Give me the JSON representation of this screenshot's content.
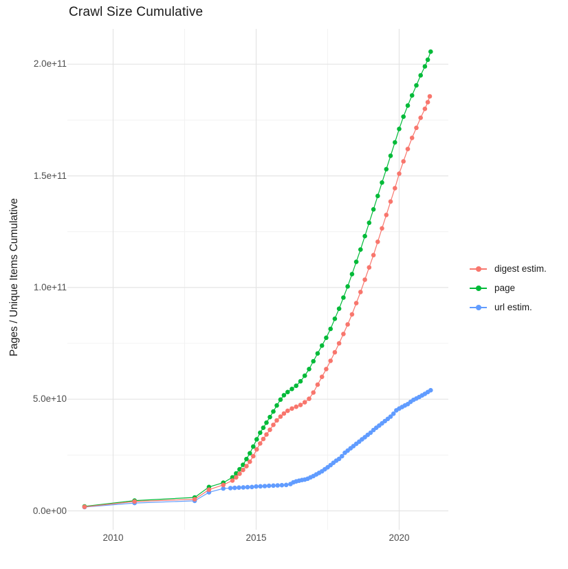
{
  "page": {
    "title": "Crawl Size Cumulative"
  },
  "chart_data": {
    "type": "scatter",
    "title": "Crawl Size Cumulative",
    "xlabel": "",
    "ylabel": "Pages / Unique Items Cumulative",
    "value_unit": "1e10",
    "grid": true,
    "legend_position": "right",
    "xlim": [
      2008.4,
      2021.7
    ],
    "ylim_e10": [
      -0.9,
      21.6
    ],
    "x_ticks": {
      "values": [
        2010,
        2015,
        2020
      ],
      "labels": [
        "2010",
        "2015",
        "2020"
      ],
      "minor": [
        2012.5,
        2017.5
      ]
    },
    "y_ticks": {
      "values_e10": [
        0,
        5,
        10,
        15,
        20
      ],
      "labels": [
        "0.0e+00",
        "5.0e+10",
        "1.0e+11",
        "1.5e+11",
        "2.0e+11"
      ],
      "minor_e10": [
        2.5,
        7.5,
        12.5,
        17.5
      ]
    },
    "series": [
      {
        "name": "digest estim.",
        "color": "#F8766D",
        "points": [
          [
            2009.0,
            0.18
          ],
          [
            2010.75,
            0.42
          ],
          [
            2012.85,
            0.52
          ],
          [
            2013.35,
            0.95
          ],
          [
            2013.85,
            1.16
          ],
          [
            2014.17,
            1.36
          ],
          [
            2014.3,
            1.5
          ],
          [
            2014.42,
            1.66
          ],
          [
            2014.54,
            1.83
          ],
          [
            2014.66,
            2.0
          ],
          [
            2014.78,
            2.2
          ],
          [
            2014.9,
            2.45
          ],
          [
            2015.02,
            2.75
          ],
          [
            2015.14,
            3.02
          ],
          [
            2015.25,
            3.22
          ],
          [
            2015.36,
            3.42
          ],
          [
            2015.48,
            3.63
          ],
          [
            2015.6,
            3.85
          ],
          [
            2015.72,
            4.05
          ],
          [
            2015.85,
            4.22
          ],
          [
            2015.97,
            4.36
          ],
          [
            2016.1,
            4.48
          ],
          [
            2016.25,
            4.58
          ],
          [
            2016.4,
            4.66
          ],
          [
            2016.55,
            4.74
          ],
          [
            2016.7,
            4.86
          ],
          [
            2016.85,
            5.02
          ],
          [
            2017.0,
            5.3
          ],
          [
            2017.15,
            5.65
          ],
          [
            2017.3,
            6.0
          ],
          [
            2017.45,
            6.35
          ],
          [
            2017.6,
            6.72
          ],
          [
            2017.75,
            7.1
          ],
          [
            2017.9,
            7.5
          ],
          [
            2018.05,
            7.92
          ],
          [
            2018.2,
            8.35
          ],
          [
            2018.35,
            8.8
          ],
          [
            2018.5,
            9.3
          ],
          [
            2018.65,
            9.8
          ],
          [
            2018.8,
            10.35
          ],
          [
            2018.95,
            10.9
          ],
          [
            2019.1,
            11.45
          ],
          [
            2019.25,
            12.05
          ],
          [
            2019.4,
            12.65
          ],
          [
            2019.55,
            13.25
          ],
          [
            2019.7,
            13.85
          ],
          [
            2019.85,
            14.45
          ],
          [
            2020.0,
            15.1
          ],
          [
            2020.15,
            15.65
          ],
          [
            2020.3,
            16.2
          ],
          [
            2020.45,
            16.7
          ],
          [
            2020.6,
            17.15
          ],
          [
            2020.75,
            17.6
          ],
          [
            2020.9,
            18.0
          ],
          [
            2021.0,
            18.3
          ],
          [
            2021.07,
            18.56
          ]
        ]
      },
      {
        "name": "page",
        "color": "#00BA38",
        "points": [
          [
            2009.0,
            0.2
          ],
          [
            2010.75,
            0.46
          ],
          [
            2012.85,
            0.6
          ],
          [
            2013.35,
            1.07
          ],
          [
            2013.85,
            1.26
          ],
          [
            2014.17,
            1.5
          ],
          [
            2014.3,
            1.68
          ],
          [
            2014.42,
            1.86
          ],
          [
            2014.54,
            2.06
          ],
          [
            2014.66,
            2.32
          ],
          [
            2014.78,
            2.58
          ],
          [
            2014.9,
            2.88
          ],
          [
            2015.02,
            3.2
          ],
          [
            2015.14,
            3.5
          ],
          [
            2015.25,
            3.72
          ],
          [
            2015.36,
            3.95
          ],
          [
            2015.48,
            4.2
          ],
          [
            2015.6,
            4.45
          ],
          [
            2015.72,
            4.72
          ],
          [
            2015.85,
            4.98
          ],
          [
            2015.97,
            5.18
          ],
          [
            2016.1,
            5.32
          ],
          [
            2016.25,
            5.46
          ],
          [
            2016.4,
            5.6
          ],
          [
            2016.55,
            5.8
          ],
          [
            2016.7,
            6.05
          ],
          [
            2016.85,
            6.35
          ],
          [
            2017.0,
            6.7
          ],
          [
            2017.15,
            7.05
          ],
          [
            2017.3,
            7.4
          ],
          [
            2017.45,
            7.75
          ],
          [
            2017.6,
            8.15
          ],
          [
            2017.75,
            8.6
          ],
          [
            2017.9,
            9.05
          ],
          [
            2018.05,
            9.55
          ],
          [
            2018.2,
            10.05
          ],
          [
            2018.35,
            10.6
          ],
          [
            2018.5,
            11.15
          ],
          [
            2018.65,
            11.7
          ],
          [
            2018.8,
            12.3
          ],
          [
            2018.95,
            12.9
          ],
          [
            2019.1,
            13.5
          ],
          [
            2019.25,
            14.1
          ],
          [
            2019.4,
            14.7
          ],
          [
            2019.55,
            15.3
          ],
          [
            2019.7,
            15.9
          ],
          [
            2019.85,
            16.5
          ],
          [
            2020.0,
            17.1
          ],
          [
            2020.15,
            17.65
          ],
          [
            2020.3,
            18.15
          ],
          [
            2020.45,
            18.6
          ],
          [
            2020.6,
            19.05
          ],
          [
            2020.75,
            19.5
          ],
          [
            2020.9,
            19.9
          ],
          [
            2021.0,
            20.2
          ],
          [
            2021.1,
            20.56
          ]
        ]
      },
      {
        "name": "url estim.",
        "color": "#619CFF",
        "points": [
          [
            2009.0,
            0.17
          ],
          [
            2010.75,
            0.35
          ],
          [
            2012.85,
            0.45
          ],
          [
            2013.35,
            0.83
          ],
          [
            2013.85,
            1.0
          ],
          [
            2014.1,
            1.02
          ],
          [
            2014.25,
            1.03
          ],
          [
            2014.4,
            1.04
          ],
          [
            2014.55,
            1.05
          ],
          [
            2014.7,
            1.06
          ],
          [
            2014.85,
            1.07
          ],
          [
            2015.0,
            1.09
          ],
          [
            2015.15,
            1.1
          ],
          [
            2015.3,
            1.11
          ],
          [
            2015.45,
            1.12
          ],
          [
            2015.6,
            1.13
          ],
          [
            2015.75,
            1.14
          ],
          [
            2015.9,
            1.15
          ],
          [
            2016.05,
            1.16
          ],
          [
            2016.2,
            1.2
          ],
          [
            2016.3,
            1.28
          ],
          [
            2016.4,
            1.32
          ],
          [
            2016.5,
            1.35
          ],
          [
            2016.6,
            1.38
          ],
          [
            2016.7,
            1.4
          ],
          [
            2016.8,
            1.44
          ],
          [
            2016.9,
            1.5
          ],
          [
            2017.0,
            1.56
          ],
          [
            2017.1,
            1.63
          ],
          [
            2017.2,
            1.7
          ],
          [
            2017.3,
            1.77
          ],
          [
            2017.4,
            1.86
          ],
          [
            2017.5,
            1.95
          ],
          [
            2017.6,
            2.05
          ],
          [
            2017.7,
            2.15
          ],
          [
            2017.8,
            2.25
          ],
          [
            2017.9,
            2.33
          ],
          [
            2018.0,
            2.45
          ],
          [
            2018.1,
            2.6
          ],
          [
            2018.2,
            2.7
          ],
          [
            2018.3,
            2.8
          ],
          [
            2018.4,
            2.9
          ],
          [
            2018.5,
            3.0
          ],
          [
            2018.6,
            3.1
          ],
          [
            2018.7,
            3.2
          ],
          [
            2018.8,
            3.3
          ],
          [
            2018.9,
            3.4
          ],
          [
            2019.0,
            3.5
          ],
          [
            2019.1,
            3.62
          ],
          [
            2019.2,
            3.72
          ],
          [
            2019.3,
            3.82
          ],
          [
            2019.4,
            3.92
          ],
          [
            2019.5,
            4.02
          ],
          [
            2019.6,
            4.12
          ],
          [
            2019.7,
            4.22
          ],
          [
            2019.8,
            4.35
          ],
          [
            2019.9,
            4.5
          ],
          [
            2020.0,
            4.58
          ],
          [
            2020.1,
            4.65
          ],
          [
            2020.2,
            4.72
          ],
          [
            2020.3,
            4.78
          ],
          [
            2020.4,
            4.88
          ],
          [
            2020.5,
            4.97
          ],
          [
            2020.6,
            5.03
          ],
          [
            2020.7,
            5.1
          ],
          [
            2020.8,
            5.17
          ],
          [
            2020.9,
            5.24
          ],
          [
            2021.0,
            5.32
          ],
          [
            2021.1,
            5.4
          ]
        ]
      }
    ]
  },
  "style_colors": {
    "grid_major": "#e4e4e4",
    "grid_minor": "#f1f1f1",
    "tick_text": "#4d4d4d",
    "title_text": "#1a1a1a"
  }
}
